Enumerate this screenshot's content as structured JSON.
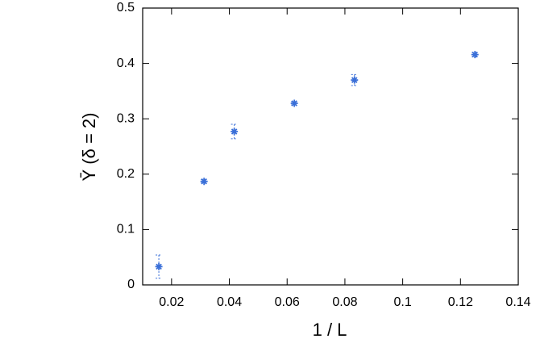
{
  "chart_data": {
    "type": "scatter",
    "x_label": "1 / L",
    "y_label": "Ῡ (δ = 2)",
    "xlim": [
      0.01,
      0.14
    ],
    "xticks": [
      0.02,
      0.04,
      0.06,
      0.08,
      0.1,
      0.12,
      0.14
    ],
    "ylim": [
      0,
      0.5
    ],
    "yticks": [
      0,
      0.1,
      0.2,
      0.3,
      0.4,
      0.5
    ],
    "series": [
      {
        "color": "#3a6fd8",
        "x": [
          0.0156,
          0.03125,
          0.0417,
          0.0625,
          0.0833,
          0.125
        ],
        "values": [
          0.033,
          0.187,
          0.277,
          0.328,
          0.37,
          0.416
        ],
        "errors": [
          0.021,
          0.003,
          0.013,
          0.003,
          0.01,
          0.004
        ]
      }
    ]
  }
}
